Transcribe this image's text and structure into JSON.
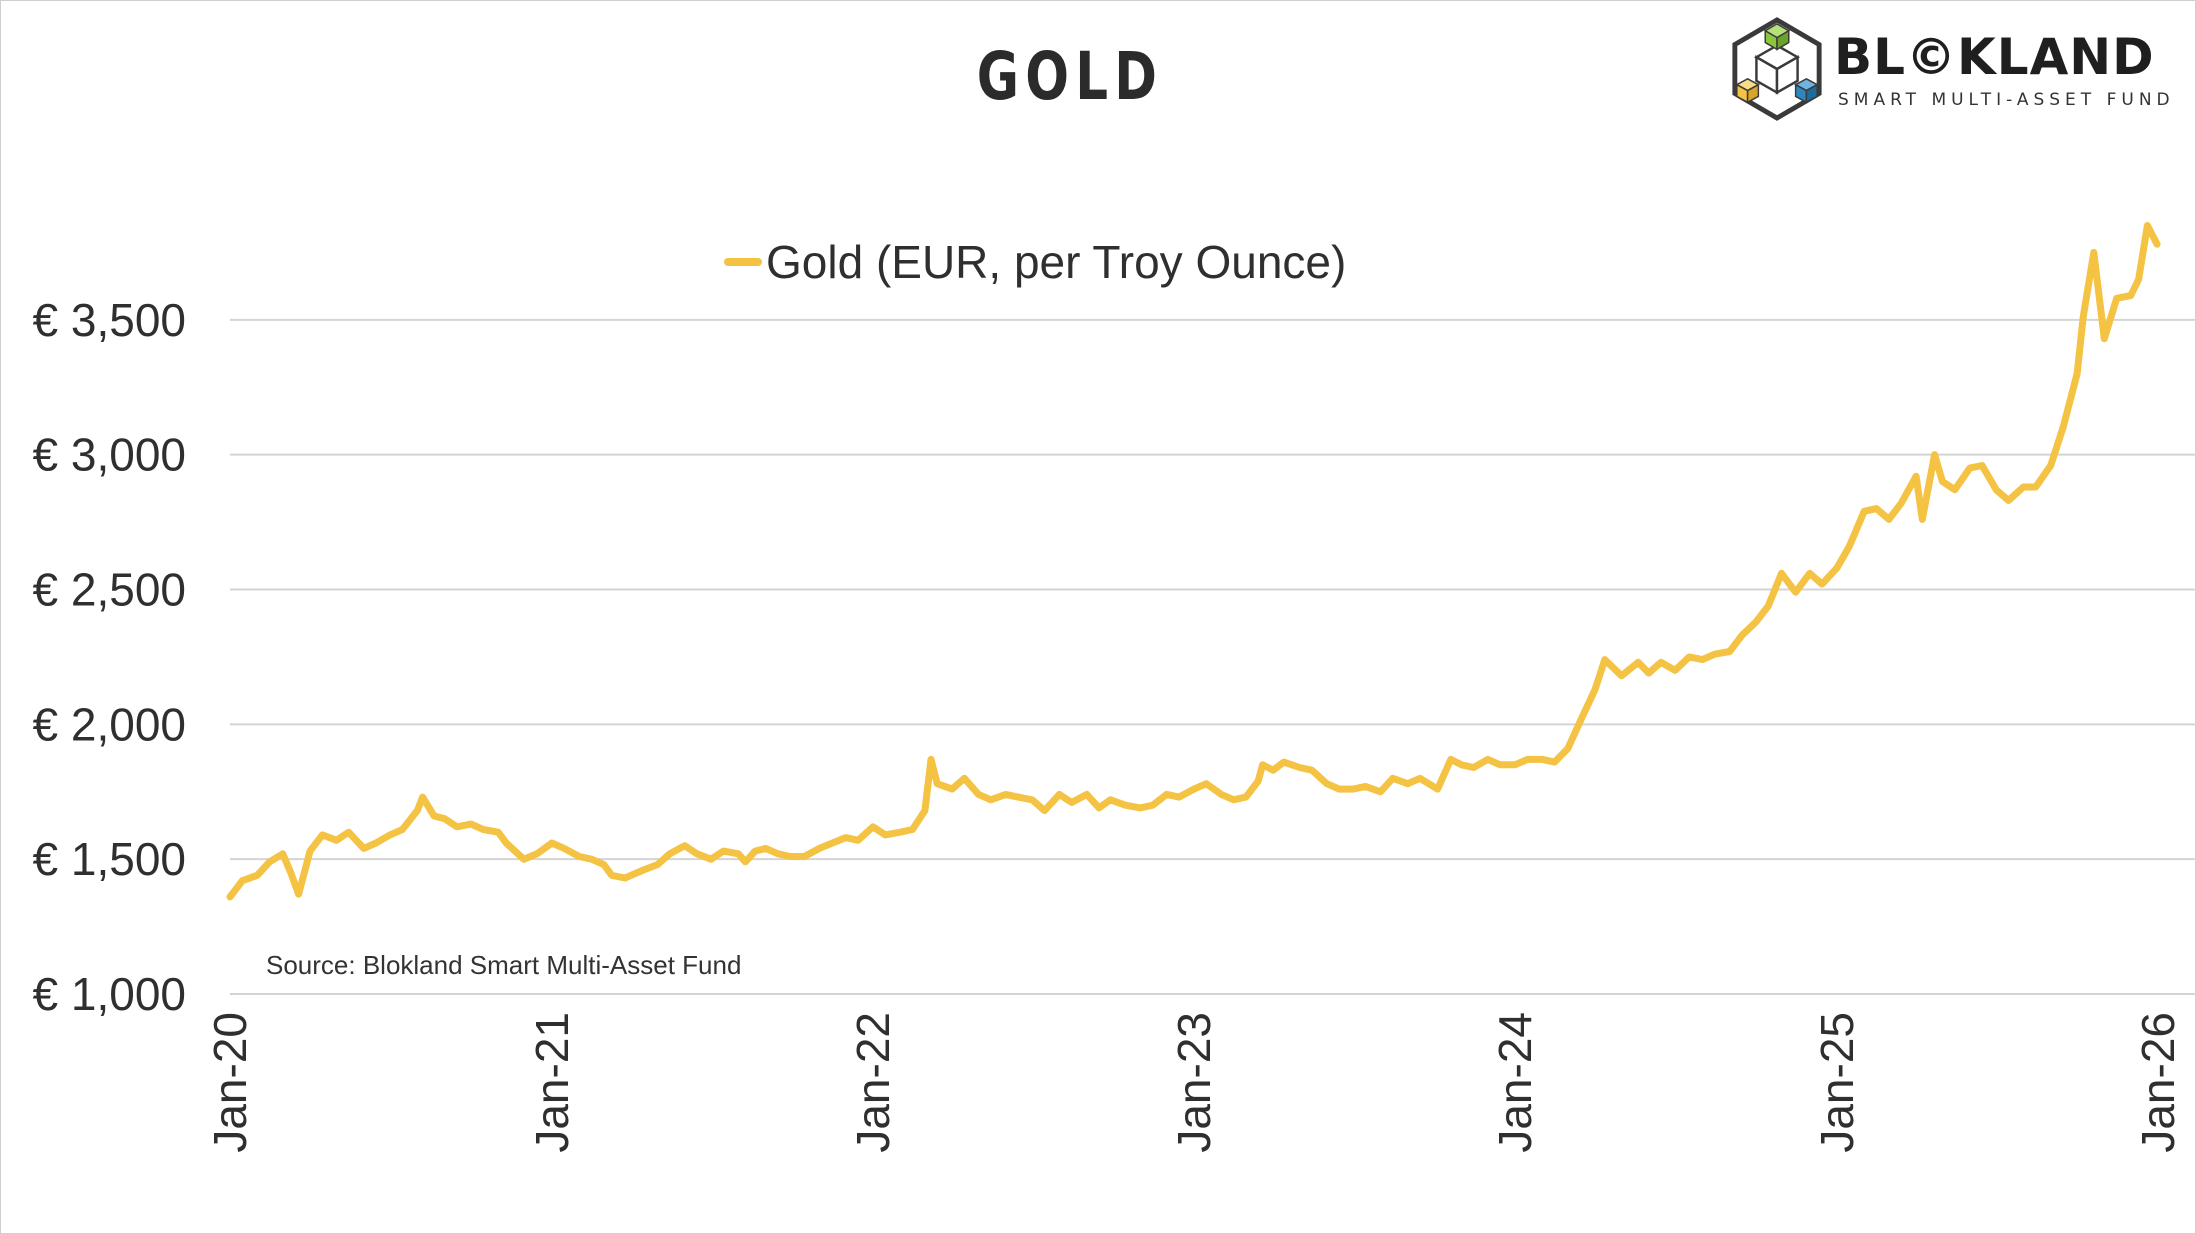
{
  "title": "GOLD",
  "brand": {
    "name": "BL©KLAND",
    "tagline": "SMART MULTI-ASSET FUND",
    "logo_icon": "cube-hexagon-logo",
    "logo_colors": [
      "#8cc63f",
      "#f5c343",
      "#2e86c1",
      "#3a3a3a"
    ]
  },
  "source": "Source: Blokland Smart Multi-Asset Fund",
  "chart_data": {
    "type": "line",
    "title": "GOLD",
    "xlabel": "",
    "ylabel": "",
    "ylim": [
      1000,
      4000
    ],
    "xlim": [
      "2020-01-01",
      "2026-01-01"
    ],
    "grid": true,
    "legend_position": "top-center",
    "y_ticks": [
      1000,
      1500,
      2000,
      2500,
      3000,
      3500
    ],
    "y_tick_labels": [
      "€ 1,000",
      "€ 1,500",
      "€ 2,000",
      "€ 2,500",
      "€ 3,000",
      "€ 3,500"
    ],
    "x_ticks": [
      "2020-01-01",
      "2021-01-01",
      "2022-01-01",
      "2023-01-01",
      "2024-01-01",
      "2025-01-01",
      "2026-01-01"
    ],
    "x_tick_labels": [
      "Jan-20",
      "Jan-21",
      "Jan-22",
      "Jan-23",
      "Jan-24",
      "Jan-25",
      "Jan-26"
    ],
    "series": [
      {
        "name": "Gold (EUR, per Troy Ounce)",
        "color": "#f5c343",
        "x": [
          "2020-01-01",
          "2020-01-15",
          "2020-02-01",
          "2020-02-15",
          "2020-03-01",
          "2020-03-10",
          "2020-03-19",
          "2020-04-01",
          "2020-04-15",
          "2020-05-01",
          "2020-05-15",
          "2020-06-01",
          "2020-06-15",
          "2020-07-01",
          "2020-07-15",
          "2020-08-01",
          "2020-08-07",
          "2020-08-20",
          "2020-09-01",
          "2020-09-15",
          "2020-10-01",
          "2020-10-15",
          "2020-11-01",
          "2020-11-10",
          "2020-11-30",
          "2020-12-15",
          "2021-01-01",
          "2021-01-15",
          "2021-02-01",
          "2021-02-15",
          "2021-03-01",
          "2021-03-10",
          "2021-03-25",
          "2021-04-15",
          "2021-05-01",
          "2021-05-15",
          "2021-06-01",
          "2021-06-15",
          "2021-07-01",
          "2021-07-15",
          "2021-08-01",
          "2021-08-09",
          "2021-08-20",
          "2021-09-01",
          "2021-09-15",
          "2021-09-29",
          "2021-10-15",
          "2021-11-01",
          "2021-11-16",
          "2021-12-01",
          "2021-12-15",
          "2022-01-01",
          "2022-01-15",
          "2022-02-01",
          "2022-02-15",
          "2022-03-01",
          "2022-03-08",
          "2022-03-15",
          "2022-04-01",
          "2022-04-15",
          "2022-05-01",
          "2022-05-15",
          "2022-06-01",
          "2022-06-15",
          "2022-07-01",
          "2022-07-15",
          "2022-08-01",
          "2022-08-15",
          "2022-09-01",
          "2022-09-15",
          "2022-09-28",
          "2022-10-15",
          "2022-11-01",
          "2022-11-15",
          "2022-12-01",
          "2022-12-15",
          "2023-01-01",
          "2023-01-15",
          "2023-02-01",
          "2023-02-15",
          "2023-03-01",
          "2023-03-15",
          "2023-03-20",
          "2023-04-01",
          "2023-04-13",
          "2023-05-01",
          "2023-05-15",
          "2023-06-01",
          "2023-06-15",
          "2023-07-01",
          "2023-07-15",
          "2023-08-01",
          "2023-08-15",
          "2023-09-01",
          "2023-09-15",
          "2023-10-05",
          "2023-10-20",
          "2023-11-01",
          "2023-11-15",
          "2023-12-01",
          "2023-12-15",
          "2024-01-01",
          "2024-01-15",
          "2024-02-01",
          "2024-02-15",
          "2024-03-01",
          "2024-03-15",
          "2024-04-01",
          "2024-04-12",
          "2024-05-01",
          "2024-05-20",
          "2024-06-01",
          "2024-06-15",
          "2024-07-01",
          "2024-07-17",
          "2024-08-01",
          "2024-08-15",
          "2024-09-01",
          "2024-09-15",
          "2024-10-01",
          "2024-10-15",
          "2024-10-30",
          "2024-11-15",
          "2024-12-01",
          "2024-12-15",
          "2025-01-01",
          "2025-01-15",
          "2025-02-01",
          "2025-02-15",
          "2025-03-01",
          "2025-03-15",
          "2025-04-01",
          "2025-04-08",
          "2025-04-22",
          "2025-05-01",
          "2025-05-15",
          "2025-06-01",
          "2025-06-15",
          "2025-07-01",
          "2025-07-15",
          "2025-08-01",
          "2025-08-15",
          "2025-09-01",
          "2025-09-15",
          "2025-10-01",
          "2025-10-08",
          "2025-10-20",
          "2025-11-01",
          "2025-11-15",
          "2025-12-01",
          "2025-12-10",
          "2025-12-20",
          "2025-12-31"
        ],
        "values": [
          1360,
          1420,
          1440,
          1490,
          1520,
          1450,
          1370,
          1530,
          1590,
          1570,
          1600,
          1540,
          1560,
          1590,
          1610,
          1680,
          1730,
          1660,
          1650,
          1620,
          1630,
          1610,
          1600,
          1560,
          1500,
          1520,
          1560,
          1540,
          1510,
          1500,
          1480,
          1440,
          1430,
          1460,
          1480,
          1520,
          1550,
          1520,
          1500,
          1530,
          1520,
          1490,
          1530,
          1540,
          1520,
          1510,
          1510,
          1540,
          1560,
          1580,
          1570,
          1620,
          1590,
          1600,
          1610,
          1680,
          1870,
          1780,
          1760,
          1800,
          1740,
          1720,
          1740,
          1730,
          1720,
          1680,
          1740,
          1710,
          1740,
          1690,
          1720,
          1700,
          1690,
          1700,
          1740,
          1730,
          1760,
          1780,
          1740,
          1720,
          1730,
          1790,
          1850,
          1830,
          1860,
          1840,
          1830,
          1780,
          1760,
          1760,
          1770,
          1750,
          1800,
          1780,
          1800,
          1760,
          1870,
          1850,
          1840,
          1870,
          1850,
          1850,
          1870,
          1870,
          1860,
          1910,
          2010,
          2130,
          2240,
          2180,
          2230,
          2190,
          2230,
          2200,
          2250,
          2240,
          2260,
          2270,
          2330,
          2380,
          2440,
          2560,
          2490,
          2560,
          2520,
          2580,
          2660,
          2790,
          2800,
          2760,
          2820,
          2920,
          2760,
          3000,
          2900,
          2870,
          2950,
          2960,
          2870,
          2830,
          2880,
          2880,
          2960,
          3100,
          3300,
          3510,
          3750,
          3430,
          3580,
          3590,
          3650,
          3850,
          3780
        ]
      }
    ]
  }
}
